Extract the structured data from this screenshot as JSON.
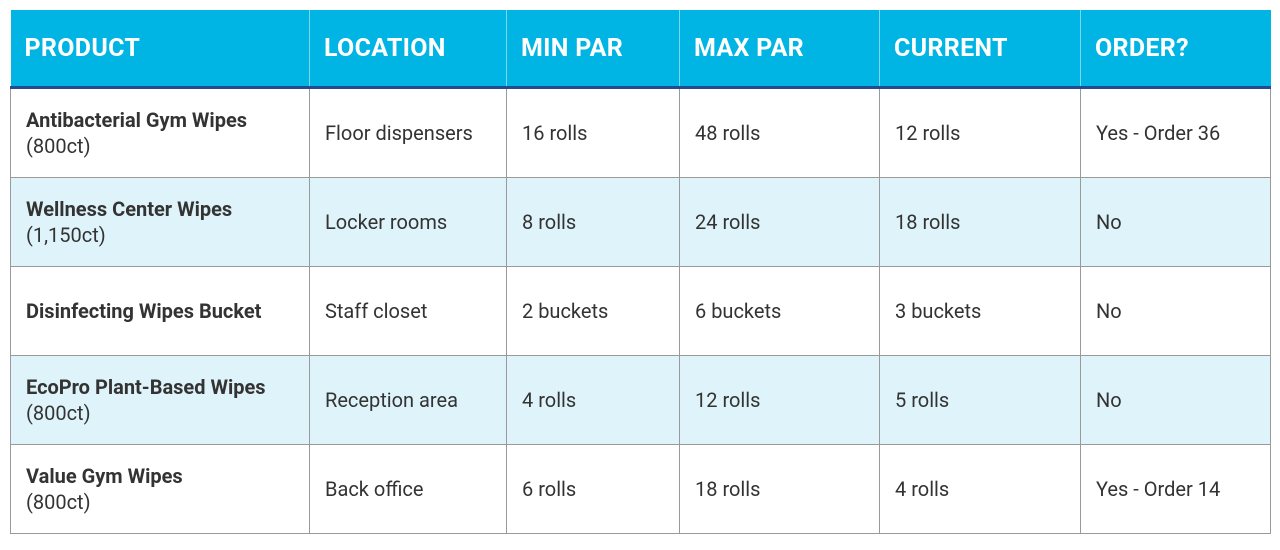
{
  "table": {
    "headers": [
      "PRODUCT",
      "LOCATION",
      "MIN PAR",
      "MAX PAR",
      "CURRENT",
      "ORDER?"
    ],
    "rows": [
      {
        "product": {
          "name": "Antibacterial Gym Wipes",
          "count": "(800ct)"
        },
        "cells": [
          "Floor dispensers",
          "16 rolls",
          "48 rolls",
          "12 rolls",
          "Yes - Order 36"
        ]
      },
      {
        "product": {
          "name": "Wellness Center Wipes",
          "count": "(1,150ct)"
        },
        "cells": [
          "Locker rooms",
          "8 rolls",
          "24 rolls",
          "18 rolls",
          "No"
        ]
      },
      {
        "product": {
          "name": "Disinfecting Wipes Bucket"
        },
        "cells": [
          "Staff closet",
          "2 buckets",
          "6 buckets",
          "3 buckets",
          "No"
        ]
      },
      {
        "product": {
          "name": "EcoPro Plant-Based Wipes",
          "count": "(800ct)"
        },
        "cells": [
          "Reception area",
          "4 rolls",
          "12 rolls",
          "5 rolls",
          "No"
        ]
      },
      {
        "product": {
          "name": "Value Gym Wipes",
          "count": "(800ct)"
        },
        "cells": [
          "Back office",
          "6 rolls",
          "18 rolls",
          "4 rolls",
          "Yes - Order 14"
        ]
      }
    ]
  }
}
